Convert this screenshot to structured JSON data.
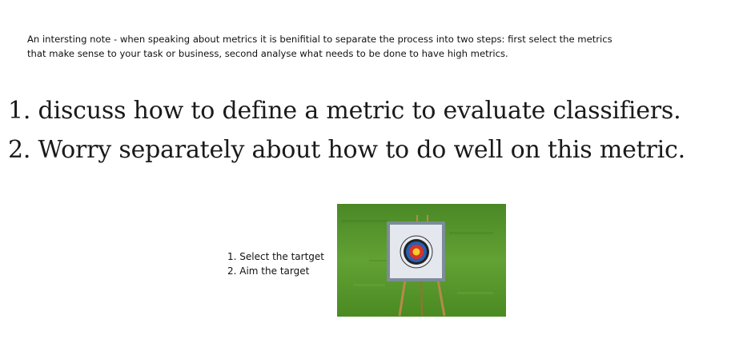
{
  "note": {
    "line1": "An intersting note - when speaking about metrics it is benifitial to separate the process into two steps: first select the metrics",
    "line2": "that make sense to your task or business, second analyse what needs to be done to have high metrics."
  },
  "big_list": [
    {
      "text": "1. discuss how to define a metric to evaluate classifiers."
    },
    {
      "text": "2. Worry separately about how to do well on this metric."
    }
  ],
  "steps": [
    {
      "text": "1. Select the tartget"
    },
    {
      "text": "2. Aim the target"
    }
  ],
  "colors": {
    "grass": "#5a9a2e",
    "target_board": "#8a9aa8",
    "target_red": "#d8332a",
    "target_blue": "#2a5fb0",
    "stand_wood": "#b58a4a"
  }
}
